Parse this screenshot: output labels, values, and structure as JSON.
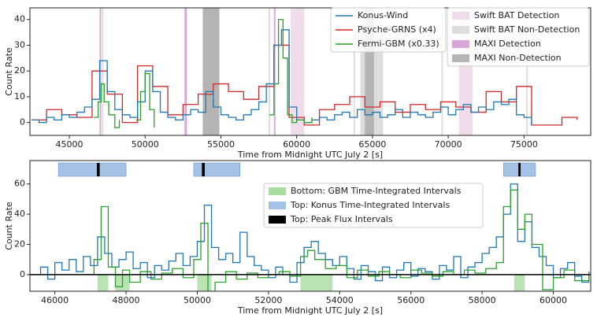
{
  "chart_data": [
    {
      "type": "line",
      "xlabel": "Time from Midnight UTC July 2 [s]",
      "ylabel": "Count Rate",
      "xlim": [
        42400,
        79400
      ],
      "ylim": [
        -5,
        44.5
      ],
      "xticks": [
        45000,
        50000,
        55000,
        60000,
        65000,
        70000,
        75000
      ],
      "yticks": [
        0,
        10,
        20,
        30,
        40
      ],
      "series": [
        {
          "name": "Konus-Wind",
          "color": "#1f77b4",
          "x": [
            42500,
            43000,
            43500,
            44000,
            44500,
            45000,
            45500,
            46000,
            46500,
            47000,
            47500,
            48000,
            48500,
            49000,
            49500,
            50000,
            50500,
            51000,
            51500,
            52000,
            52500,
            53000,
            53500,
            54000,
            54500,
            55000,
            55500,
            56000,
            56500,
            57000,
            57500,
            58000,
            58500,
            59000,
            59500,
            60000,
            60500,
            61000,
            61500,
            62000,
            62500,
            63000,
            63500,
            64000,
            64500,
            65000,
            65500,
            66000,
            66500,
            67000,
            67500,
            68000,
            68500,
            69000,
            69500,
            70000,
            70500,
            71000,
            71500,
            72000,
            72500,
            73000,
            73500,
            74000,
            74500,
            75000,
            75500
          ],
          "values": [
            1,
            0,
            2,
            1,
            3,
            2,
            4,
            6,
            9,
            24,
            12,
            5,
            3,
            2,
            8,
            20,
            12,
            4,
            2,
            1,
            3,
            5,
            4,
            12,
            6,
            3,
            2,
            1,
            3,
            5,
            8,
            15,
            30,
            36,
            6,
            1,
            0,
            1,
            2,
            1,
            3,
            4,
            2,
            5,
            3,
            4,
            2,
            3,
            5,
            2,
            4,
            3,
            2,
            4,
            6,
            3,
            5,
            7,
            4,
            6,
            5,
            8,
            7,
            9,
            3,
            2,
            -1
          ]
        },
        {
          "name": "Psyche-GRNS (x4)",
          "color": "#d62728",
          "x": [
            42500,
            43500,
            44500,
            45500,
            46500,
            47500,
            48500,
            49500,
            50500,
            51500,
            52500,
            53500,
            54500,
            55500,
            56500,
            57500,
            58500,
            59500,
            60500,
            61500,
            62500,
            63500,
            64500,
            65500,
            66500,
            67500,
            68500,
            69500,
            70500,
            71500,
            72500,
            73500,
            74500,
            75500,
            76500,
            77500,
            78500
          ],
          "values": [
            1,
            5,
            3,
            2,
            20,
            11,
            0,
            22,
            14,
            3,
            7,
            11,
            15,
            12,
            9,
            14,
            30,
            2,
            -1,
            5,
            7,
            10,
            6,
            8,
            4,
            7,
            5,
            8,
            6,
            4,
            12,
            8,
            14,
            -1,
            -1,
            2,
            1
          ]
        },
        {
          "name": "Fermi-GBM (x0.33)",
          "color": "#2ca02c",
          "x": [
            46600,
            46900,
            47100,
            47300,
            47600,
            48000,
            48300,
            48600,
            49400,
            49700,
            50000,
            50300,
            50600,
            50900,
            58200,
            58500,
            58800,
            59100,
            59400,
            59700,
            60000,
            60500,
            61000,
            61500
          ],
          "values": [
            2,
            8,
            15,
            8,
            3,
            -2,
            1,
            null,
            1,
            12,
            19,
            5,
            -2,
            null,
            3,
            15,
            40,
            25,
            3,
            0,
            1,
            0,
            2,
            null
          ]
        }
      ],
      "spans": [
        {
          "name": "Swift BAT Detection",
          "color": "#f0dcea",
          "ranges": [
            [
              59600,
              60500
            ],
            [
              70700,
              71600
            ]
          ]
        },
        {
          "name": "Swift BAT Non-Detection",
          "color": "#dddddd",
          "ranges": [
            [
              64200,
              65700
            ],
            [
              47150,
              47250
            ],
            [
              58150,
              58250
            ],
            [
              63750,
              63850
            ],
            [
              69550,
              69650
            ],
            [
              75150,
              75250
            ]
          ]
        },
        {
          "name": "MAXI Detection",
          "color": "#d8a6d8",
          "ranges": [
            [
              47000,
              47100
            ],
            [
              52600,
              52750
            ],
            [
              58500,
              58600
            ]
          ]
        },
        {
          "name": "MAXI Non-Detection",
          "color": "#b4b4b4",
          "ranges": [
            [
              53800,
              54900
            ],
            [
              64500,
              65100
            ]
          ]
        }
      ]
    },
    {
      "type": "line",
      "xlabel": "Time from Midnight UTC July 2 [s]",
      "ylabel": "Count Rate",
      "xlim": [
        45300,
        61050
      ],
      "ylim": [
        -11,
        75.5
      ],
      "xticks": [
        46000,
        48000,
        50000,
        52000,
        54000,
        56000,
        58000,
        60000
      ],
      "yticks": [
        0,
        20,
        40,
        60
      ],
      "hline": 0,
      "series": [
        {
          "name": "Konus-Wind",
          "color": "#1f77b4",
          "x": [
            45400,
            45600,
            45800,
            46000,
            46200,
            46400,
            46600,
            46800,
            47000,
            47200,
            47400,
            47600,
            47800,
            48000,
            48200,
            48400,
            48600,
            48800,
            49000,
            49200,
            49400,
            49600,
            49800,
            50000,
            50200,
            50400,
            50600,
            50800,
            51000,
            51200,
            51400,
            51600,
            51800,
            52000,
            52200,
            52400,
            52600,
            52800,
            53000,
            53200,
            53400,
            53600,
            53800,
            54000,
            54200,
            54400,
            54600,
            54800,
            55000,
            55200,
            55400,
            55600,
            55800,
            56000,
            56200,
            56400,
            56600,
            56800,
            57000,
            57200,
            57400,
            57600,
            57800,
            58000,
            58200,
            58400,
            58600,
            58800,
            59000,
            59200,
            59400,
            59600,
            59800,
            60000,
            60200,
            60400,
            60600,
            60800,
            61000
          ],
          "values": [
            0,
            5,
            -3,
            8,
            3,
            10,
            2,
            12,
            6,
            25,
            14,
            5,
            10,
            15,
            4,
            8,
            -2,
            6,
            3,
            9,
            14,
            6,
            12,
            22,
            46,
            18,
            10,
            14,
            8,
            28,
            12,
            6,
            3,
            -2,
            5,
            0,
            -5,
            8,
            18,
            22,
            14,
            10,
            6,
            12,
            4,
            -3,
            6,
            2,
            -4,
            5,
            -2,
            3,
            8,
            -1,
            4,
            2,
            -3,
            6,
            3,
            12,
            -2,
            5,
            8,
            14,
            18,
            25,
            40,
            60,
            22,
            35,
            18,
            12,
            6,
            -2,
            4,
            8,
            -1,
            -5,
            2
          ]
        },
        {
          "name": "Fermi-GBM",
          "color": "#2ca02c",
          "x": [
            46900,
            47100,
            47300,
            47500,
            47700,
            47900,
            48100,
            48400,
            48700,
            49000,
            49300,
            49600,
            49900,
            50100,
            50300,
            50500,
            50800,
            51100,
            51400,
            51700,
            52000,
            52300,
            52600,
            52900,
            53100,
            53300,
            53600,
            53900,
            54200,
            54500,
            54800,
            55100,
            55400,
            55700,
            56000,
            56300,
            56600,
            56900,
            57200,
            57500,
            57800,
            58100,
            58400,
            58600,
            58800,
            59000,
            59200,
            59400,
            59700,
            60000,
            60300,
            60600,
            61000
          ],
          "values": [
            0,
            10,
            45,
            5,
            -8,
            3,
            -5,
            2,
            -3,
            1,
            4,
            -2,
            10,
            34,
            -15,
            -5,
            2,
            -3,
            1,
            -2,
            0,
            2,
            -1,
            12,
            16,
            10,
            4,
            6,
            -2,
            3,
            -1,
            2,
            0,
            -2,
            3,
            1,
            -1,
            2,
            0,
            3,
            1,
            4,
            8,
            45,
            56,
            30,
            40,
            20,
            -10,
            -2,
            3,
            -4,
            0
          ]
        }
      ],
      "intervals": [
        {
          "name": "Bottom: GBM Time-Integrated Intervals",
          "color": "#a8dca0",
          "ranges": [
            [
              47200,
              47500
            ],
            [
              47700,
              48100
            ],
            [
              50000,
              50400
            ],
            [
              52900,
              53800
            ],
            [
              58900,
              59200
            ]
          ]
        },
        {
          "name": "Top: Konus Time-Integrated Intervals",
          "color": "#a4c2e6",
          "ranges": [
            [
              46100,
              48000
            ],
            [
              49900,
              51200
            ],
            [
              58600,
              59500
            ]
          ]
        },
        {
          "name": "Top: Peak Flux Intervals",
          "color": "#000000",
          "ranges": [
            [
              47180,
              47260
            ],
            [
              50130,
              50210
            ],
            [
              59020,
              59080
            ]
          ]
        }
      ]
    }
  ]
}
